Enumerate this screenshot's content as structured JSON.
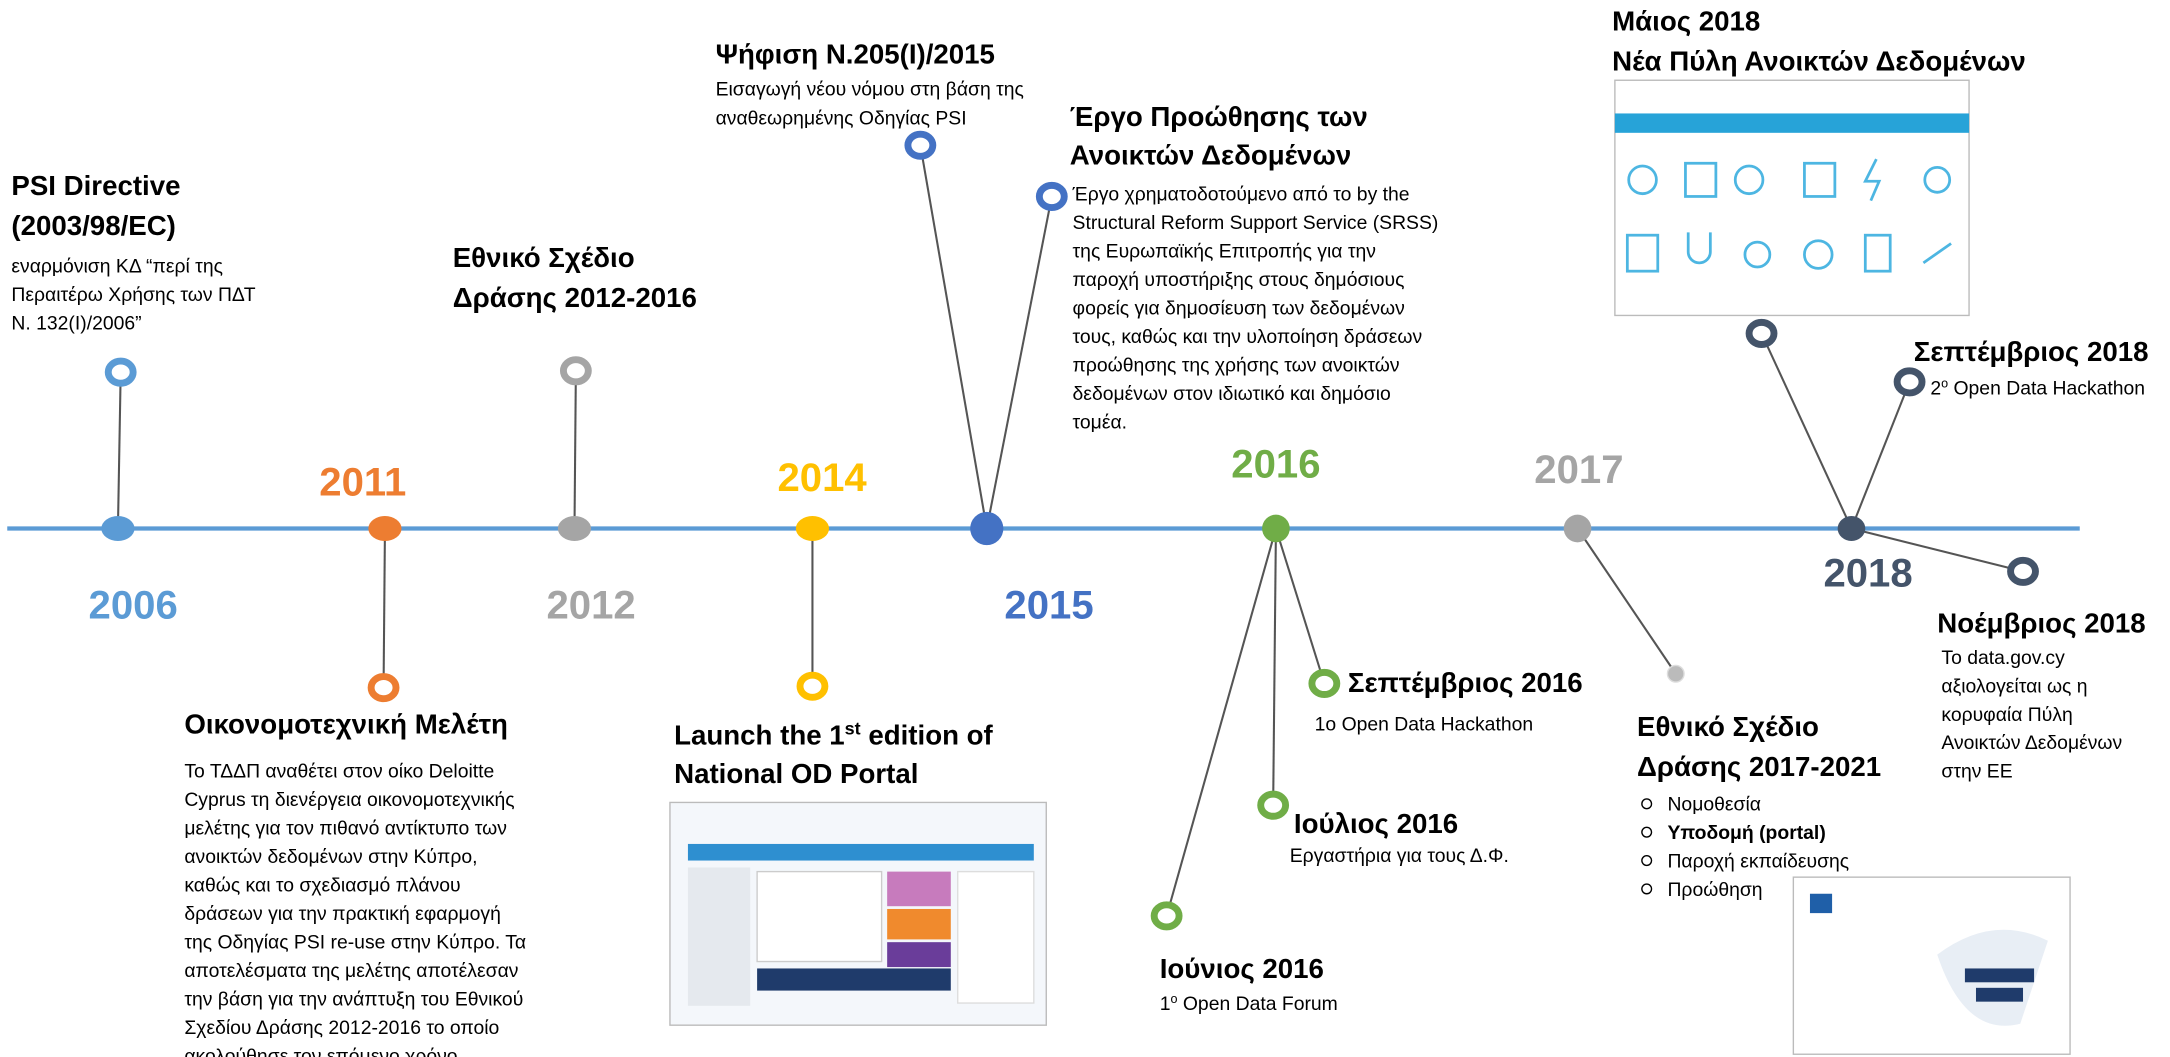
{
  "years": [
    "2006",
    "2011",
    "2012",
    "2014",
    "2015",
    "2016",
    "2017",
    "2018"
  ],
  "events": [
    {
      "title": [
        "PSI Directive",
        "(2003/98/EC)"
      ],
      "body": [
        "εναρμόνιση ΚΔ “περί της",
        "Περαιτέρω Χρήσης των ΠΔΤ",
        "Ν. 132(Ι)/2006”"
      ]
    },
    {
      "title": [
        "Οικονομοτεχνική Μελέτη"
      ],
      "body": [
        "Το ΤΔΔΠ αναθέτει στον οίκο Deloitte",
        "Cyprus τη διενέργεια οικονομοτεχνικής",
        "μελέτης για τον πιθανό αντίκτυπο των",
        "ανοικτών δεδομένων στην Κύπρο,",
        "καθώς και το σχεδιασμό πλάνου",
        "δράσεων για την πρακτική εφαρμογή",
        "της Οδηγίας PSI re-use στην Κύπρο. Τα",
        "αποτελέσματα της μελέτης αποτέλεσαν",
        "την βάση για την ανάπτυξη του Εθνικού",
        "Σχεδίου Δράσης 2012-2016 το οποίο",
        "ακολούθησε τον επόμενο χρόνο."
      ]
    },
    {
      "title": [
        "Εθνικό Σχέδιο",
        "Δράσης 2012-2016"
      ],
      "body": []
    },
    {
      "title": [
        [
          "Launch the 1",
          {
            "text": "st",
            "sup": true
          },
          " edition of"
        ],
        "National OD Portal"
      ],
      "body": []
    },
    {
      "title": [
        "Ψήφιση Ν.205(Ι)/2015"
      ],
      "body": [
        "Εισαγωγή νέου νόμου στη βάση της",
        "αναθεωρημένης Οδηγίας PSI"
      ]
    },
    {
      "title": [
        "Έργο Προώθησης των",
        "Ανοικτών Δεδομένων"
      ],
      "body": [
        "Έργο χρηματοδοτούμενο από το by the",
        "Structural Reform Support Service (SRSS)",
        "της Ευρωπαϊκής Επιτροπής για την",
        "παροχή υποστήριξης στους δημόσιους",
        "φορείς για δημοσίευση των δεδομένων",
        "τους, καθώς και την υλοποίηση δράσεων",
        "προώθησης της χρήσης των ανοικτών",
        "δεδομένων στον ιδιωτικό και δημόσιο",
        "τομέα."
      ]
    },
    {
      "title": [
        "Σεπτέμβριος 2016"
      ],
      "body": [
        "1ο Open Data Hackathon"
      ]
    },
    {
      "title": [
        "Ιούλιος 2016"
      ],
      "body": [
        "Εργαστήρια για τους Δ.Φ."
      ]
    },
    {
      "title": [
        "Ιούνιος 2016"
      ],
      "body": [
        [
          "1",
          {
            "text": "ο",
            "sup": true
          },
          " Open Data Forum"
        ]
      ]
    },
    {
      "title": [
        "Εθνικό Σχέδιο",
        "Δράσης 2017-2021"
      ],
      "bullets": [
        "Νομοθεσία",
        [
          {
            "text": "Υποδομή (portal)",
            "bold": true
          }
        ],
        "Παροχή εκπαίδευσης",
        "Προώθηση"
      ]
    },
    {
      "title": [
        "Μάιος 2018",
        "Νέα Πύλη Ανοικτών Δεδομένων"
      ],
      "body": []
    },
    {
      "title": [
        "Σεπτέμβριος 2018"
      ],
      "body": [
        [
          "2",
          {
            "text": "ο",
            "sup": true
          },
          " Open Data Hackathon"
        ]
      ]
    },
    {
      "title": [
        "Νοέμβριος 2018"
      ],
      "body": [
        "Το data.gov.cy",
        "αξιολογείται ως η",
        "κορυφαία Πύλη",
        "Ανοικτών Δεδομένων",
        "στην ΕΕ"
      ]
    }
  ]
}
